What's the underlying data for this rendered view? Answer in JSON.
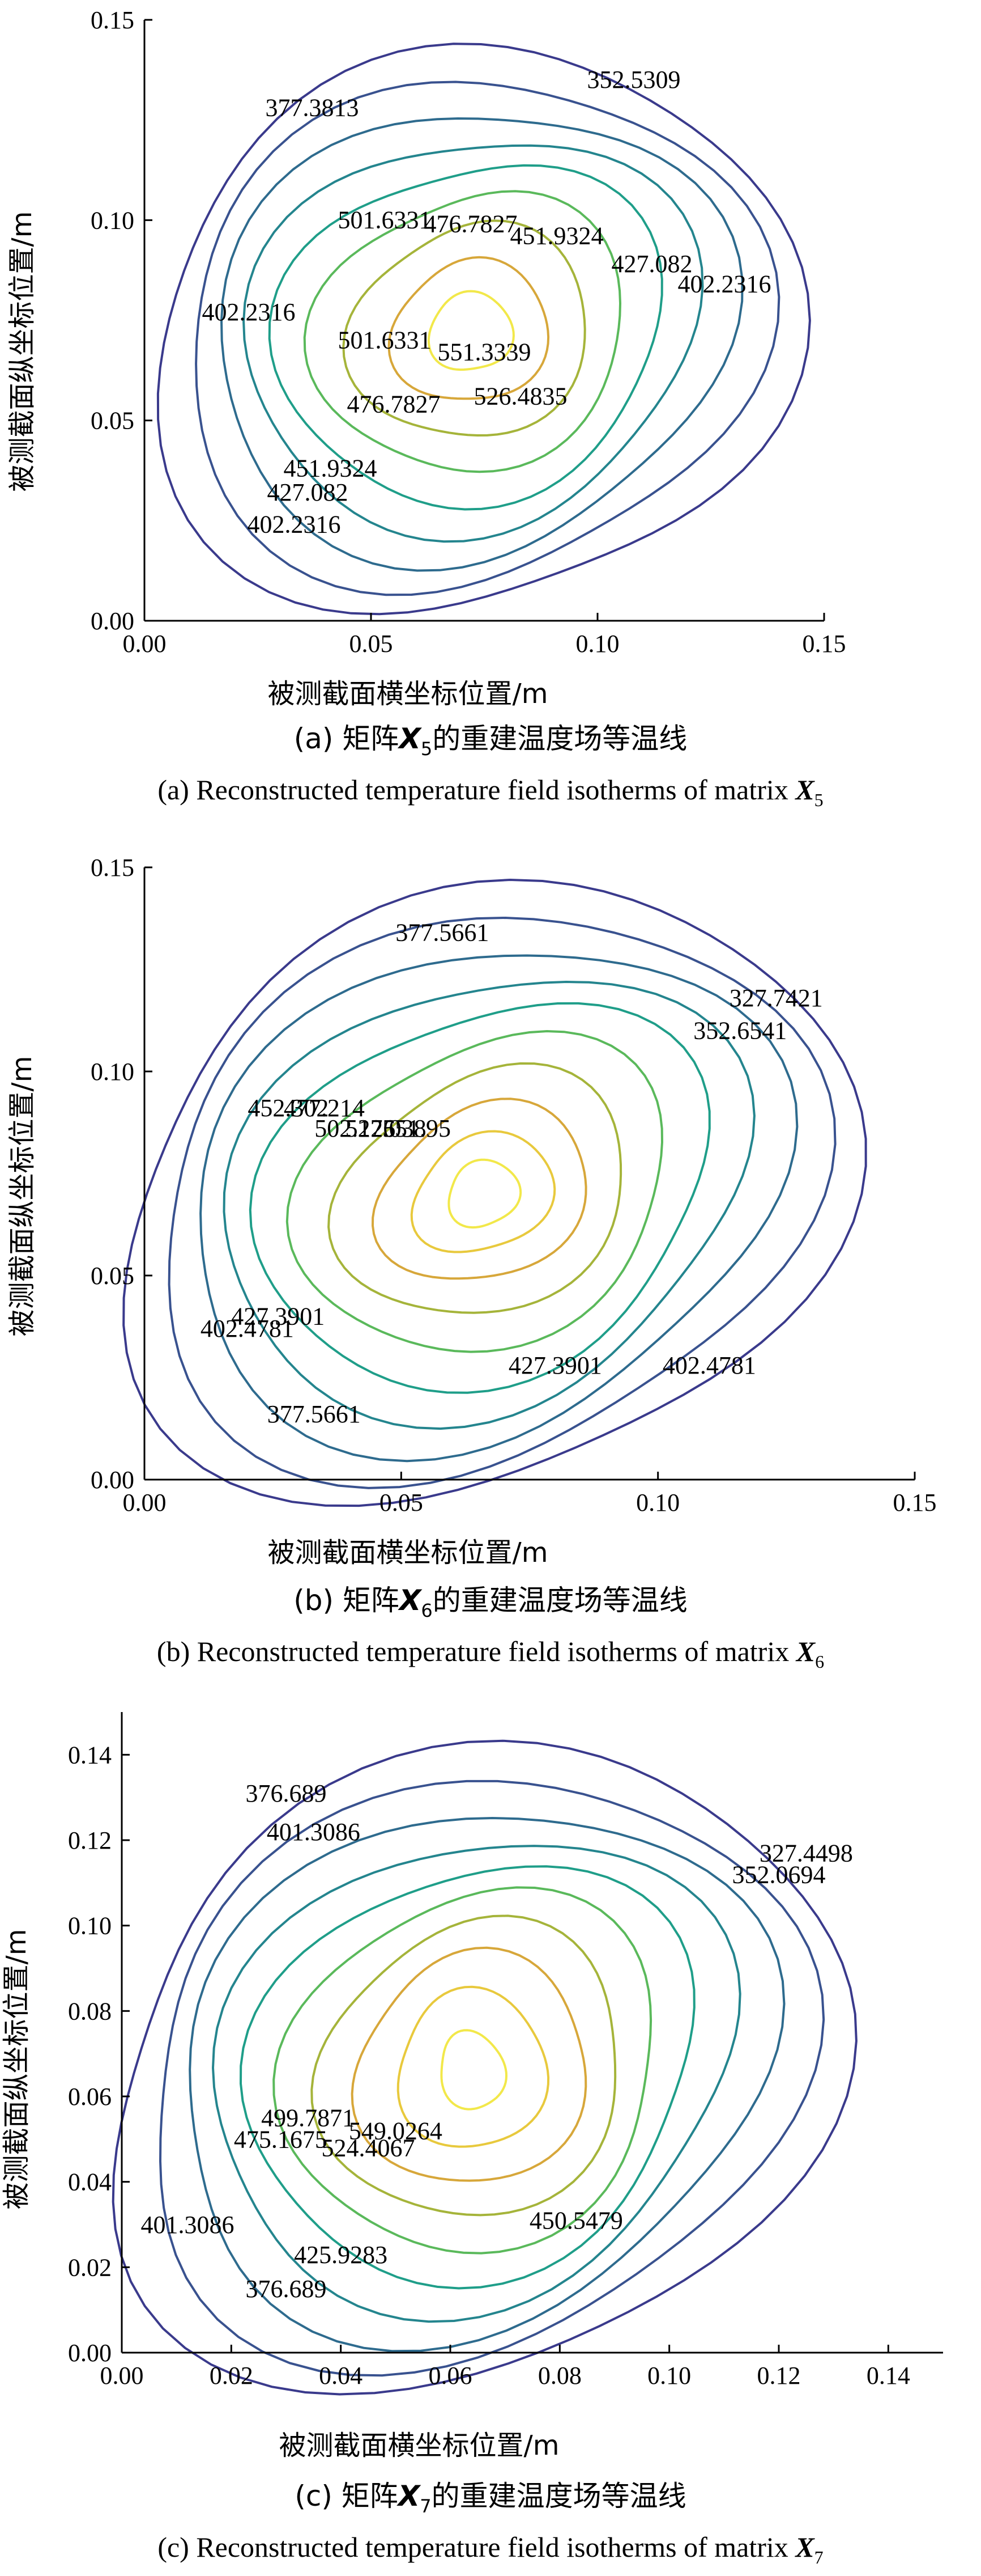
{
  "chart_data": [
    {
      "type": "contour",
      "panel": "a",
      "caption_cn": {
        "prefix": "(a) 矩阵",
        "var": "X",
        "sub": "5",
        "suffix": "的重建温度场等温线"
      },
      "caption_en": {
        "prefix": "(a) Reconstructed temperature field isotherms of matrix ",
        "var": "X",
        "sub": "5"
      },
      "xlabel": "被测截面横坐标位置/m",
      "ylabel": "被测截面纵坐标位置/m",
      "xlim": [
        0,
        0.15
      ],
      "ylim": [
        0,
        0.15
      ],
      "xticks": [
        "0.00",
        "0.05",
        "0.10",
        "0.15"
      ],
      "yticks": [
        "0.00",
        "0.05",
        "0.10",
        "0.15"
      ],
      "center": [
        0.072,
        0.072
      ],
      "levels": [
        {
          "value": 352.5309,
          "rx": 0.07,
          "ry": 0.071,
          "color": "#3a3a8c"
        },
        {
          "value": 377.3813,
          "rx": 0.063,
          "ry": 0.064,
          "color": "#39528f"
        },
        {
          "value": 402.2316,
          "rx": 0.056,
          "ry": 0.057,
          "color": "#2e6b8e"
        },
        {
          "value": 427.082,
          "rx": 0.049,
          "ry": 0.05,
          "color": "#24858e"
        },
        {
          "value": 451.9324,
          "rx": 0.042,
          "ry": 0.043,
          "color": "#1f9e89"
        },
        {
          "value": 476.7827,
          "rx": 0.034,
          "ry": 0.035,
          "color": "#5ab95b"
        },
        {
          "value": 501.6331,
          "rx": 0.026,
          "ry": 0.027,
          "color": "#a5b43a"
        },
        {
          "value": 526.4835,
          "rx": 0.017,
          "ry": 0.018,
          "color": "#d7a73a"
        },
        {
          "value": 551.3339,
          "rx": 0.009,
          "ry": 0.01,
          "color": "#f2e84a"
        }
      ],
      "labels": [
        {
          "text": "352.5309",
          "x": 0.108,
          "y": 0.133
        },
        {
          "text": "377.3813",
          "x": 0.037,
          "y": 0.126
        },
        {
          "text": "402.2316",
          "x": 0.023,
          "y": 0.075
        },
        {
          "text": "402.2316",
          "x": 0.128,
          "y": 0.082
        },
        {
          "text": "402.2316",
          "x": 0.033,
          "y": 0.022
        },
        {
          "text": "427.082",
          "x": 0.112,
          "y": 0.087
        },
        {
          "text": "427.082",
          "x": 0.036,
          "y": 0.03
        },
        {
          "text": "451.9324",
          "x": 0.091,
          "y": 0.094
        },
        {
          "text": "451.9324",
          "x": 0.041,
          "y": 0.036
        },
        {
          "text": "476.7827",
          "x": 0.072,
          "y": 0.097
        },
        {
          "text": "476.7827",
          "x": 0.055,
          "y": 0.052
        },
        {
          "text": "501.6331",
          "x": 0.053,
          "y": 0.098
        },
        {
          "text": "501.6331",
          "x": 0.053,
          "y": 0.068
        },
        {
          "text": "551.3339",
          "x": 0.075,
          "y": 0.065
        },
        {
          "text": "526.4835",
          "x": 0.083,
          "y": 0.054
        }
      ]
    },
    {
      "type": "contour",
      "panel": "b",
      "caption_cn": {
        "prefix": "(b) 矩阵",
        "var": "X",
        "sub": "6",
        "suffix": "的重建温度场等温线"
      },
      "caption_en": {
        "prefix": "(b) Reconstructed temperature field isotherms of matrix ",
        "var": "X",
        "sub": "6"
      },
      "xlabel": "被测截面横坐标位置/m",
      "ylabel": "被测截面纵坐标位置/m",
      "xlim": [
        0,
        0.15
      ],
      "ylim": [
        0,
        0.15
      ],
      "xticks": [
        "0.00",
        "0.05",
        "0.10",
        "0.15"
      ],
      "yticks": [
        "0.00",
        "0.05",
        "0.10",
        "0.15"
      ],
      "center": [
        0.066,
        0.07
      ],
      "levels": [
        {
          "value": 327.7421,
          "rx": 0.073,
          "ry": 0.072,
          "color": "#3a3a8c"
        },
        {
          "value": 352.6541,
          "rx": 0.066,
          "ry": 0.066,
          "color": "#39528f"
        },
        {
          "value": 377.5661,
          "rx": 0.059,
          "ry": 0.059,
          "color": "#2e6b8e"
        },
        {
          "value": 402.4781,
          "rx": 0.052,
          "ry": 0.052,
          "color": "#24858e"
        },
        {
          "value": 427.3901,
          "rx": 0.045,
          "ry": 0.045,
          "color": "#1f9e89"
        },
        {
          "value": 452.302,
          "rx": 0.037,
          "ry": 0.037,
          "color": "#5ab95b"
        },
        {
          "value": 477.214,
          "rx": 0.029,
          "ry": 0.029,
          "color": "#a5b43a"
        },
        {
          "value": 502.126,
          "rx": 0.021,
          "ry": 0.021,
          "color": "#d7a73a"
        },
        {
          "value": 527.038,
          "rx": 0.014,
          "ry": 0.014,
          "color": "#e8c93d"
        },
        {
          "value": 551.95,
          "rx": 0.007,
          "ry": 0.008,
          "color": "#f2e84a"
        }
      ],
      "labels": [
        {
          "text": "377.5661",
          "x": 0.058,
          "y": 0.132
        },
        {
          "text": "327.7421",
          "x": 0.123,
          "y": 0.116
        },
        {
          "text": "352.6541",
          "x": 0.116,
          "y": 0.108
        },
        {
          "text": "452.302",
          "x": 0.028,
          "y": 0.089
        },
        {
          "text": "477.214",
          "x": 0.035,
          "y": 0.089
        },
        {
          "text": "502.126",
          "x": 0.041,
          "y": 0.084
        },
        {
          "text": "527.038",
          "x": 0.047,
          "y": 0.084
        },
        {
          "text": "551.95",
          "x": 0.053,
          "y": 0.084
        },
        {
          "text": "427.3901",
          "x": 0.026,
          "y": 0.038
        },
        {
          "text": "402.4781",
          "x": 0.02,
          "y": 0.035
        },
        {
          "text": "377.5661",
          "x": 0.033,
          "y": 0.014
        },
        {
          "text": "427.3901",
          "x": 0.08,
          "y": 0.026
        },
        {
          "text": "402.4781",
          "x": 0.11,
          "y": 0.026
        }
      ]
    },
    {
      "type": "contour",
      "panel": "c",
      "caption_cn": {
        "prefix": "(c) 矩阵",
        "var": "X",
        "sub": "7",
        "suffix": "的重建温度场等温线"
      },
      "caption_en": {
        "prefix": "(c) Reconstructed temperature field isotherms of matrix ",
        "var": "X",
        "sub": "7"
      },
      "xlabel": "被测截面横坐标位置/m",
      "ylabel": "被测截面纵坐标位置/m",
      "xlim": [
        0,
        0.15
      ],
      "ylim": [
        0,
        0.15
      ],
      "xticks": [
        "0.00",
        "0.02",
        "0.04",
        "0.06",
        "0.08",
        "0.10",
        "0.12",
        "0.14"
      ],
      "yticks": [
        "0.00",
        "0.02",
        "0.04",
        "0.06",
        "0.08",
        "0.10",
        "0.12",
        "0.14"
      ],
      "center": [
        0.064,
        0.066
      ],
      "levels": [
        {
          "value": 327.4498,
          "rx": 0.071,
          "ry": 0.07,
          "color": "#3a3a8c"
        },
        {
          "value": 352.0694,
          "rx": 0.064,
          "ry": 0.064,
          "color": "#39528f"
        },
        {
          "value": 376.689,
          "rx": 0.057,
          "ry": 0.058,
          "color": "#2e6b8e"
        },
        {
          "value": 401.3086,
          "rx": 0.05,
          "ry": 0.052,
          "color": "#24858e"
        },
        {
          "value": 425.9283,
          "rx": 0.043,
          "ry": 0.046,
          "color": "#1f9e89"
        },
        {
          "value": 450.5479,
          "rx": 0.036,
          "ry": 0.04,
          "color": "#5ab95b"
        },
        {
          "value": 475.1675,
          "rx": 0.029,
          "ry": 0.033,
          "color": "#a5b43a"
        },
        {
          "value": 499.7871,
          "rx": 0.022,
          "ry": 0.026,
          "color": "#d7a73a"
        },
        {
          "value": 524.4067,
          "rx": 0.014,
          "ry": 0.018,
          "color": "#e8c93d"
        },
        {
          "value": 549.0264,
          "rx": 0.006,
          "ry": 0.009,
          "color": "#f2e84a"
        }
      ],
      "labels": [
        {
          "text": "376.689",
          "x": 0.03,
          "y": 0.129
        },
        {
          "text": "401.3086",
          "x": 0.035,
          "y": 0.12
        },
        {
          "text": "327.4498",
          "x": 0.125,
          "y": 0.115
        },
        {
          "text": "352.0694",
          "x": 0.12,
          "y": 0.11
        },
        {
          "text": "499.7871",
          "x": 0.034,
          "y": 0.053
        },
        {
          "text": "475.1675",
          "x": 0.029,
          "y": 0.048
        },
        {
          "text": "549.0264",
          "x": 0.05,
          "y": 0.05
        },
        {
          "text": "524.4067",
          "x": 0.045,
          "y": 0.046
        },
        {
          "text": "450.5479",
          "x": 0.083,
          "y": 0.029
        },
        {
          "text": "401.3086",
          "x": 0.012,
          "y": 0.028
        },
        {
          "text": "425.9283",
          "x": 0.04,
          "y": 0.021
        },
        {
          "text": "376.689",
          "x": 0.03,
          "y": 0.013
        }
      ]
    }
  ]
}
